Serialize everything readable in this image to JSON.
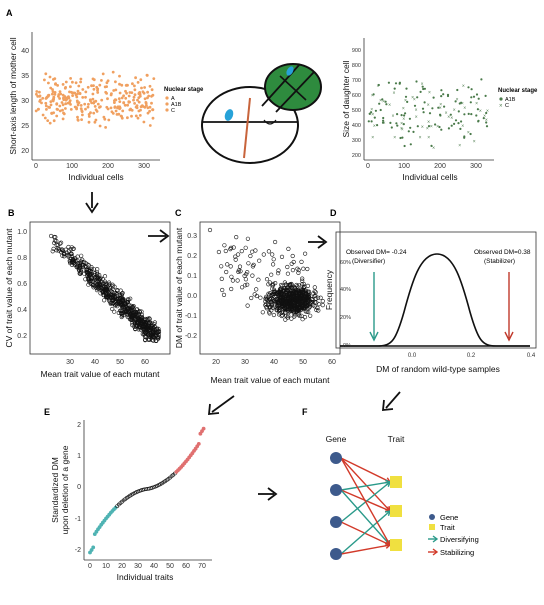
{
  "panels": {
    "A": {
      "label": "A",
      "left": {
        "ylabel": "Short-axis length of mother cell",
        "xlabel": "Individual cells",
        "xticks": [
          "0",
          "100",
          "200",
          "300"
        ],
        "yticks": [
          "20",
          "25",
          "30",
          "35",
          "40"
        ],
        "legend": {
          "title": "Nuclear stage",
          "items": [
            "A",
            "A1B",
            "C"
          ]
        }
      },
      "right": {
        "ylabel": "Size of daughter cell",
        "xlabel": "Individual cells",
        "xticks": [
          "0",
          "100",
          "200",
          "300"
        ],
        "yticks": [
          "200",
          "300",
          "400",
          "500",
          "600",
          "700",
          "800",
          "900"
        ],
        "legend": {
          "title": "Nuclear stage",
          "items": [
            "A1B",
            "C"
          ]
        }
      }
    },
    "B": {
      "label": "B",
      "ylabel": "CV of trait value of each mutant",
      "xlabel": "Mean trait value of each mutant",
      "xticks": [
        "30",
        "40",
        "50",
        "60"
      ],
      "yticks": [
        "0.2",
        "0.4",
        "0.6",
        "0.8",
        "1.0"
      ]
    },
    "C": {
      "label": "C",
      "ylabel": "DM of trait value of each mutant",
      "xlabel": "Mean trait value of each mutant",
      "xticks": [
        "20",
        "30",
        "40",
        "50",
        "60"
      ],
      "yticks": [
        "-0.2",
        "-0.1",
        "0.0",
        "0.1",
        "0.2",
        "0.3"
      ]
    },
    "D": {
      "label": "D",
      "ylabel": "Frequency",
      "xlabel": "DM of random wild-type samples",
      "xticks": [
        "0.0",
        "0.2",
        "0.4"
      ],
      "yticks": [
        "0%",
        "20%",
        "40%",
        "60%"
      ],
      "obs_left": "Observed DM= -0.24",
      "obs_left_sub": "(Diversifier)",
      "obs_right": "Observed DM=0.38",
      "obs_right_sub": "(Stabilizer)",
      "colors": {
        "left_arrow": "#2a9a8a",
        "right_arrow": "#c0392b"
      }
    },
    "E": {
      "label": "E",
      "ylabel_1": "Standardized DM",
      "ylabel_2": "upon deletion of a gene",
      "xlabel": "Individual traits",
      "xticks": [
        "0",
        "10",
        "20",
        "30",
        "40",
        "50",
        "60",
        "70"
      ],
      "yticks": [
        "-2",
        "-1",
        "0",
        "1",
        "2"
      ],
      "colors": {
        "low": "#4fb3b3",
        "mid": "#111111",
        "high": "#e07070"
      }
    },
    "F": {
      "label": "F",
      "gene_header": "Gene",
      "trait_header": "Trait",
      "legend": [
        "Gene",
        "Trait",
        "Diversifying",
        "Stabilizing"
      ],
      "colors": {
        "gene": "#3d5a8c",
        "trait": "#f0e040",
        "diversifying": "#2a9a8a",
        "stabilizing": "#d23a2a"
      }
    }
  },
  "colors": {
    "scatter_orange": "#f0a060",
    "scatter_green": "#4a7a4a",
    "cell_green": "#2e8b3e",
    "cell_blue": "#27a2d8",
    "cell_red": "#c8643c"
  }
}
